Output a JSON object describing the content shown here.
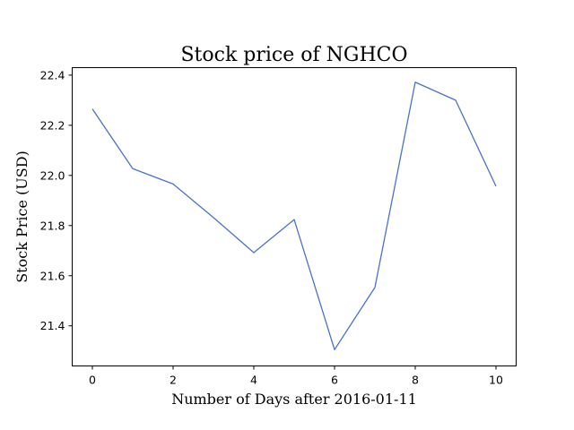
{
  "chart_data": {
    "type": "line",
    "title": "Stock price of NGHCO",
    "xlabel": "Number of Days after 2016-01-11",
    "ylabel": "Stock Price (USD)",
    "xlim": [
      -0.5,
      10.5
    ],
    "ylim": [
      21.24,
      22.43
    ],
    "xticks": [
      0,
      2,
      4,
      6,
      8,
      10
    ],
    "yticks": [
      21.4,
      21.6,
      21.8,
      22.0,
      22.2,
      22.4
    ],
    "grid": false,
    "series": [
      {
        "color": "#4a72c8",
        "x": [
          0,
          1,
          2,
          3,
          4,
          5,
          6,
          7,
          8,
          9,
          10
        ],
        "y": [
          22.265,
          22.027,
          21.966,
          21.832,
          21.692,
          21.824,
          21.305,
          21.553,
          22.372,
          22.3,
          21.957
        ]
      }
    ]
  }
}
